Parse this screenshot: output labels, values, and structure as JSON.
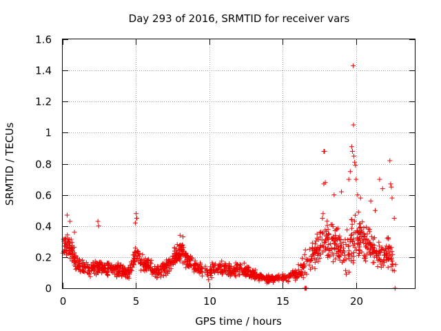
{
  "chart_data": {
    "type": "scatter",
    "title": "Day 293 of 2016, SRMTID for receiver vars",
    "xlabel": "GPS time / hours",
    "ylabel": "SRMTID / TECUs",
    "xlim": [
      0,
      24
    ],
    "ylim": [
      0,
      1.6
    ],
    "xticks": [
      0,
      5,
      10,
      15,
      20
    ],
    "yticks": [
      0,
      0.2,
      0.4,
      0.6,
      0.8,
      1,
      1.2,
      1.4,
      1.6
    ],
    "xtick_labels": [
      "0",
      "5",
      "10",
      "15",
      "20"
    ],
    "ytick_labels": [
      "0",
      "0.2",
      "0.4",
      "0.6",
      "0.8",
      "1",
      "1.2",
      "1.4",
      "1.6"
    ],
    "grid": true,
    "marker": "+",
    "color": "#ee0000",
    "series": [
      {
        "name": "SRMTID",
        "profile_x": [
          0,
          0.2,
          0.4,
          0.7,
          1.0,
          1.5,
          2.0,
          2.4,
          2.8,
          3.5,
          4.0,
          4.5,
          4.8,
          5.0,
          5.3,
          5.8,
          6.5,
          7.2,
          7.8,
          8.1,
          8.5,
          9.0,
          9.5,
          10.0,
          10.5,
          11.0,
          11.5,
          12.0,
          12.5,
          13.0,
          13.5,
          14.0,
          14.5,
          15.0,
          15.5,
          16.0,
          16.5,
          17.0,
          17.5,
          18.0,
          18.5,
          19.0,
          19.5,
          19.9,
          20.2,
          20.5,
          21.0,
          21.5,
          22.0,
          22.3,
          22.7
        ],
        "profile_y": [
          0.25,
          0.29,
          0.28,
          0.22,
          0.16,
          0.13,
          0.12,
          0.15,
          0.13,
          0.12,
          0.11,
          0.1,
          0.15,
          0.23,
          0.18,
          0.14,
          0.11,
          0.15,
          0.22,
          0.24,
          0.18,
          0.14,
          0.11,
          0.1,
          0.13,
          0.12,
          0.11,
          0.12,
          0.11,
          0.09,
          0.07,
          0.06,
          0.06,
          0.07,
          0.08,
          0.1,
          0.15,
          0.22,
          0.28,
          0.32,
          0.3,
          0.27,
          0.25,
          0.35,
          0.33,
          0.28,
          0.25,
          0.21,
          0.2,
          0.22,
          0.17
        ],
        "spread_y": [
          0.06,
          0.07,
          0.07,
          0.06,
          0.05,
          0.04,
          0.04,
          0.05,
          0.04,
          0.04,
          0.04,
          0.04,
          0.05,
          0.06,
          0.05,
          0.05,
          0.04,
          0.05,
          0.05,
          0.05,
          0.05,
          0.04,
          0.04,
          0.04,
          0.04,
          0.04,
          0.04,
          0.04,
          0.04,
          0.03,
          0.02,
          0.02,
          0.02,
          0.02,
          0.03,
          0.04,
          0.07,
          0.09,
          0.11,
          0.12,
          0.12,
          0.12,
          0.12,
          0.14,
          0.13,
          0.12,
          0.1,
          0.09,
          0.08,
          0.1,
          0.07
        ],
        "outliers": [
          {
            "x": 0.3,
            "y": 0.47
          },
          {
            "x": 0.5,
            "y": 0.43
          },
          {
            "x": 0.8,
            "y": 0.36
          },
          {
            "x": 2.4,
            "y": 0.43
          },
          {
            "x": 2.45,
            "y": 0.4
          },
          {
            "x": 5.0,
            "y": 0.48
          },
          {
            "x": 5.05,
            "y": 0.45
          },
          {
            "x": 4.95,
            "y": 0.42
          },
          {
            "x": 8.0,
            "y": 0.34
          },
          {
            "x": 8.2,
            "y": 0.33
          },
          {
            "x": 16.5,
            "y": 0.0
          },
          {
            "x": 16.55,
            "y": 0.0
          },
          {
            "x": 16.6,
            "y": 0.0
          },
          {
            "x": 17.7,
            "y": 0.45
          },
          {
            "x": 17.75,
            "y": 0.48
          },
          {
            "x": 17.8,
            "y": 0.88
          },
          {
            "x": 17.85,
            "y": 0.88
          },
          {
            "x": 17.8,
            "y": 0.67
          },
          {
            "x": 17.9,
            "y": 0.68
          },
          {
            "x": 18.5,
            "y": 0.6
          },
          {
            "x": 19.0,
            "y": 0.62
          },
          {
            "x": 19.5,
            "y": 0.7
          },
          {
            "x": 19.6,
            "y": 0.75
          },
          {
            "x": 19.7,
            "y": 0.91
          },
          {
            "x": 19.75,
            "y": 0.88
          },
          {
            "x": 19.8,
            "y": 1.43
          },
          {
            "x": 19.82,
            "y": 1.05
          },
          {
            "x": 19.85,
            "y": 0.85
          },
          {
            "x": 19.9,
            "y": 0.81
          },
          {
            "x": 19.95,
            "y": 0.79
          },
          {
            "x": 20.0,
            "y": 0.7
          },
          {
            "x": 20.1,
            "y": 0.6
          },
          {
            "x": 20.3,
            "y": 0.58
          },
          {
            "x": 21.0,
            "y": 0.56
          },
          {
            "x": 21.3,
            "y": 0.5
          },
          {
            "x": 21.6,
            "y": 0.7
          },
          {
            "x": 21.8,
            "y": 0.64
          },
          {
            "x": 22.3,
            "y": 0.82
          },
          {
            "x": 22.35,
            "y": 0.67
          },
          {
            "x": 22.4,
            "y": 0.65
          },
          {
            "x": 22.45,
            "y": 0.58
          },
          {
            "x": 22.6,
            "y": 0.45
          },
          {
            "x": 22.65,
            "y": 0.0
          }
        ]
      }
    ]
  }
}
